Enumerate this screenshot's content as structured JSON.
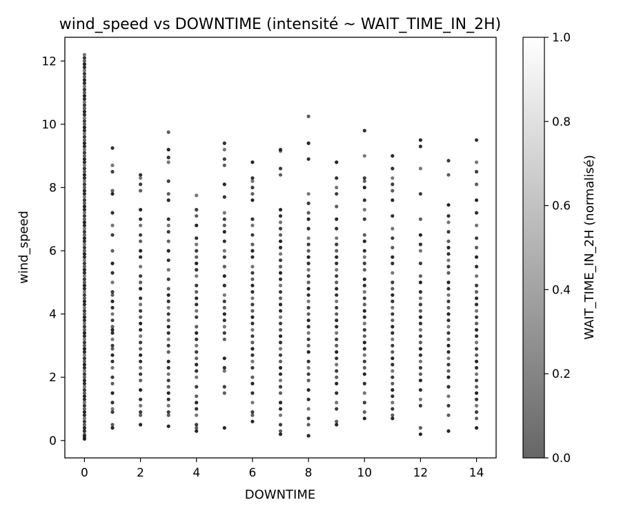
{
  "chart_data": {
    "type": "scatter",
    "title": "wind_speed vs DOWNTIME (intensité ~ WAIT_TIME_IN_2H)",
    "xlabel": "DOWNTIME",
    "ylabel": "wind_speed",
    "xlim": [
      -0.7,
      14.7
    ],
    "ylim": [
      -0.55,
      12.75
    ],
    "xticks": [
      0,
      2,
      4,
      6,
      8,
      10,
      12,
      14
    ],
    "yticks": [
      0,
      2,
      4,
      6,
      8,
      10,
      12
    ],
    "grid": false,
    "marker_color": "#1a1a1a",
    "colorbar": {
      "label": "WAIT_TIME_IN_2H (normalisé)",
      "range": [
        0,
        1
      ],
      "ticks": [
        "0.0",
        "0.2",
        "0.4",
        "0.6",
        "0.8",
        "1.0"
      ],
      "low_color": "#666666",
      "high_color": "#ffffff"
    },
    "series": [
      {
        "x": 0,
        "y": [
          0.05,
          0.1,
          0.15,
          0.2,
          0.3,
          0.4,
          0.5,
          0.6,
          0.7,
          0.8,
          0.9,
          1.0,
          1.1,
          1.2,
          1.3,
          1.4,
          1.5,
          1.6,
          1.7,
          1.8,
          1.9,
          2.0,
          2.1,
          2.2,
          2.3,
          2.4,
          2.5,
          2.6,
          2.7,
          2.8,
          2.9,
          3.0,
          3.1,
          3.2,
          3.3,
          3.4,
          3.5,
          3.6,
          3.7,
          3.8,
          3.9,
          4.0,
          4.1,
          4.2,
          4.3,
          4.4,
          4.5,
          4.6,
          4.7,
          4.8,
          4.9,
          5.0,
          5.1,
          5.2,
          5.3,
          5.4,
          5.5,
          5.6,
          5.7,
          5.8,
          5.9,
          6.0,
          6.1,
          6.2,
          6.3,
          6.4,
          6.5,
          6.6,
          6.7,
          6.8,
          6.9,
          7.0,
          7.1,
          7.2,
          7.3,
          7.4,
          7.5,
          7.6,
          7.7,
          7.8,
          7.9,
          8.0,
          8.1,
          8.2,
          8.3,
          8.4,
          8.5,
          8.6,
          8.7,
          8.8,
          8.9,
          9.0,
          9.1,
          9.2,
          9.3,
          9.4,
          9.5,
          9.6,
          9.7,
          9.8,
          9.9,
          10.0,
          10.1,
          10.2,
          10.3,
          10.4,
          10.5,
          10.6,
          10.7,
          10.8,
          10.9,
          11.0,
          11.1,
          11.2,
          11.3,
          11.4,
          11.5,
          11.6,
          11.7,
          11.8,
          11.9,
          12.0,
          12.1,
          12.2
        ]
      },
      {
        "x": 1,
        "y": [
          0.4,
          0.5,
          0.9,
          1.0,
          1.2,
          1.5,
          1.8,
          2.0,
          2.3,
          2.5,
          2.7,
          2.9,
          3.0,
          3.2,
          3.4,
          3.5,
          3.6,
          3.8,
          4.0,
          4.2,
          4.4,
          4.6,
          4.7,
          5.0,
          5.3,
          5.6,
          6.0,
          6.5,
          6.8,
          7.2,
          7.8,
          7.9,
          8.5,
          8.7,
          9.25
        ]
      },
      {
        "x": 2,
        "y": [
          0.5,
          0.8,
          0.9,
          1.1,
          1.3,
          1.6,
          1.9,
          2.1,
          2.3,
          2.5,
          2.7,
          2.9,
          3.1,
          3.3,
          3.5,
          3.7,
          3.9,
          4.1,
          4.3,
          4.5,
          4.8,
          5.0,
          5.2,
          5.5,
          5.8,
          6.0,
          6.3,
          6.5,
          6.8,
          7.0,
          7.3,
          7.9,
          8.1,
          8.3,
          8.4
        ]
      },
      {
        "x": 3,
        "y": [
          0.45,
          0.8,
          0.9,
          1.1,
          1.3,
          1.5,
          1.7,
          1.9,
          2.1,
          2.3,
          2.5,
          2.8,
          3.0,
          3.2,
          3.4,
          3.6,
          3.8,
          4.0,
          4.2,
          4.4,
          4.6,
          4.8,
          5.1,
          5.4,
          5.7,
          6.0,
          6.3,
          6.6,
          6.8,
          7.0,
          7.6,
          7.8,
          8.2,
          8.8,
          8.95,
          9.2,
          9.75
        ]
      },
      {
        "x": 4,
        "y": [
          0.3,
          0.4,
          0.5,
          0.8,
          1.0,
          1.2,
          1.4,
          1.7,
          2.0,
          2.2,
          2.4,
          2.6,
          2.8,
          3.0,
          3.2,
          3.4,
          3.6,
          3.9,
          4.1,
          4.3,
          4.5,
          4.7,
          4.9,
          5.2,
          5.4,
          5.6,
          5.8,
          6.0,
          6.2,
          6.4,
          6.8,
          7.1,
          7.3,
          7.75
        ]
      },
      {
        "x": 5,
        "y": [
          0.4,
          1.5,
          1.7,
          2.2,
          2.3,
          2.6,
          3.2,
          3.4,
          3.6,
          3.8,
          4.0,
          4.2,
          4.4,
          4.6,
          4.9,
          5.2,
          5.5,
          5.8,
          6.0,
          6.3,
          6.6,
          6.8,
          7.0,
          7.2,
          7.7,
          8.1,
          8.7,
          8.9,
          9.2,
          9.4
        ]
      },
      {
        "x": 6,
        "y": [
          0.6,
          0.8,
          0.9,
          1.2,
          1.5,
          1.8,
          2.0,
          2.3,
          2.5,
          2.7,
          2.9,
          3.1,
          3.3,
          3.5,
          3.7,
          3.9,
          4.1,
          4.3,
          4.5,
          4.7,
          4.9,
          5.1,
          5.3,
          5.5,
          5.8,
          6.0,
          6.2,
          6.5,
          6.8,
          7.0,
          7.6,
          7.8,
          8.0,
          8.2,
          8.3,
          8.8
        ]
      },
      {
        "x": 7,
        "y": [
          0.2,
          0.3,
          0.5,
          0.8,
          1.0,
          1.2,
          1.5,
          1.7,
          1.9,
          2.1,
          2.3,
          2.5,
          2.7,
          2.9,
          3.1,
          3.3,
          3.5,
          3.7,
          3.9,
          4.1,
          4.3,
          4.5,
          4.7,
          4.9,
          5.1,
          5.3,
          5.5,
          5.7,
          5.9,
          6.1,
          6.3,
          6.5,
          6.7,
          6.9,
          7.1,
          7.3,
          8.4,
          8.6,
          9.15,
          9.2
        ]
      },
      {
        "x": 8,
        "y": [
          0.15,
          0.5,
          0.7,
          1.0,
          1.3,
          1.6,
          1.9,
          2.1,
          2.3,
          2.5,
          2.8,
          3.0,
          3.2,
          3.4,
          3.6,
          3.8,
          4.0,
          4.2,
          4.4,
          4.6,
          4.8,
          5.0,
          5.2,
          5.4,
          5.6,
          5.8,
          6.0,
          6.2,
          6.4,
          6.7,
          7.0,
          7.2,
          7.5,
          7.8,
          8.9,
          9.4,
          10.25
        ]
      },
      {
        "x": 9,
        "y": [
          0.5,
          0.6,
          1.0,
          1.2,
          1.5,
          1.8,
          2.0,
          2.2,
          2.4,
          2.6,
          2.8,
          3.0,
          3.2,
          3.4,
          3.6,
          3.8,
          4.0,
          4.2,
          4.4,
          4.6,
          4.8,
          5.0,
          5.2,
          5.4,
          5.6,
          5.8,
          6.0,
          6.2,
          6.4,
          6.7,
          7.0,
          7.4,
          7.8,
          8.0,
          8.3,
          8.8
        ]
      },
      {
        "x": 10,
        "y": [
          0.7,
          0.9,
          1.2,
          1.5,
          1.8,
          2.1,
          2.3,
          2.5,
          2.7,
          2.9,
          3.1,
          3.3,
          3.5,
          3.7,
          3.9,
          4.1,
          4.3,
          4.5,
          4.7,
          4.9,
          5.1,
          5.4,
          5.6,
          5.8,
          6.0,
          6.3,
          6.5,
          7.0,
          7.3,
          7.6,
          8.0,
          8.2,
          8.3,
          9.0,
          9.8
        ]
      },
      {
        "x": 11,
        "y": [
          0.7,
          0.8,
          1.0,
          1.2,
          1.4,
          1.6,
          1.8,
          2.0,
          2.2,
          2.4,
          2.6,
          2.8,
          3.0,
          3.2,
          3.4,
          3.6,
          3.8,
          4.0,
          4.2,
          4.4,
          4.6,
          4.8,
          5.0,
          5.3,
          5.6,
          5.8,
          6.1,
          6.4,
          6.7,
          7.1,
          7.6,
          7.9,
          8.1,
          8.3,
          8.6,
          9.0
        ]
      },
      {
        "x": 12,
        "y": [
          0.2,
          0.4,
          1.1,
          1.3,
          1.6,
          1.9,
          2.1,
          2.3,
          2.5,
          2.7,
          2.9,
          3.1,
          3.3,
          3.5,
          3.7,
          3.9,
          4.1,
          4.3,
          4.5,
          4.7,
          5.0,
          5.2,
          5.6,
          6.0,
          6.2,
          6.5,
          7.0,
          7.8,
          8.6,
          9.3,
          9.5
        ]
      },
      {
        "x": 13,
        "y": [
          0.3,
          0.8,
          1.1,
          1.4,
          1.7,
          2.0,
          2.2,
          2.4,
          2.6,
          2.8,
          3.0,
          3.2,
          3.4,
          3.6,
          3.8,
          4.0,
          4.2,
          4.4,
          4.6,
          4.8,
          5.0,
          5.3,
          5.5,
          5.7,
          5.9,
          6.1,
          6.3,
          6.6,
          6.9,
          7.1,
          7.45,
          8.4,
          8.85
        ]
      },
      {
        "x": 14,
        "y": [
          0.4,
          0.7,
          0.9,
          1.1,
          1.3,
          1.5,
          1.7,
          1.9,
          2.1,
          2.3,
          2.5,
          2.7,
          2.9,
          3.1,
          3.3,
          3.5,
          3.7,
          3.9,
          4.1,
          4.3,
          4.5,
          4.7,
          4.9,
          5.2,
          5.5,
          5.8,
          6.1,
          6.4,
          6.8,
          7.2,
          7.6,
          8.1,
          8.5,
          8.8,
          9.5
        ]
      }
    ]
  }
}
